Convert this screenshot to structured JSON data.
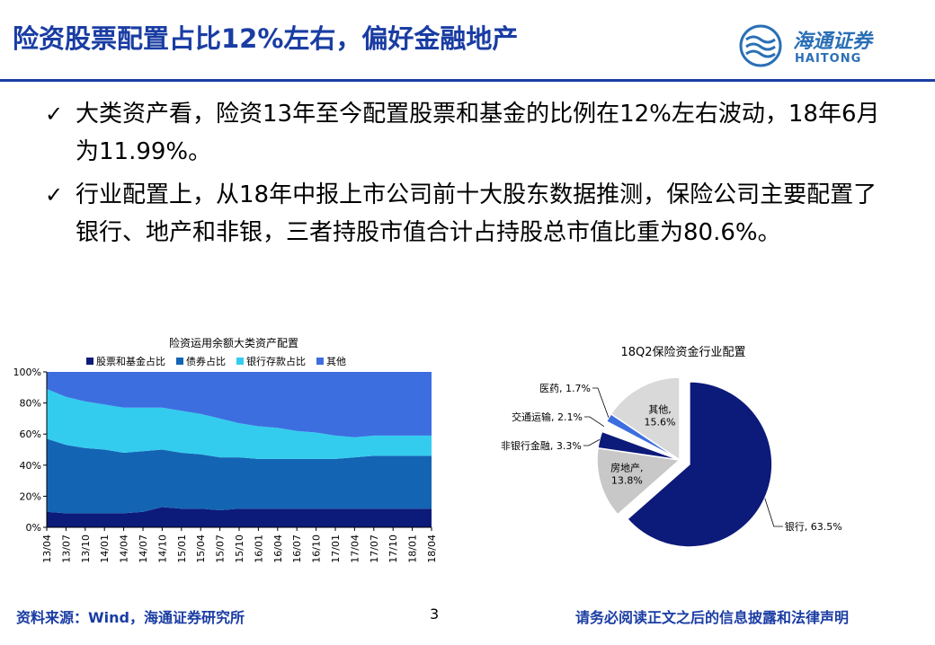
{
  "header": {
    "title": "险资股票配置占比12%左右，偏好金融地产",
    "logo_cn": "海通证券",
    "logo_en": "HAITONG"
  },
  "bullets": [
    "大类资产看，险资13年至今配置股票和基金的比例在12%左右波动，18年6月为11.99%。",
    "行业配置上，从18年中报上市公司前十大股东数据推测，保险公司主要配置了银行、地产和非银，三者持股市值合计占持股总市值比重为80.6%。"
  ],
  "footer": {
    "source": "资料来源：Wind，海通证券研究所",
    "page": "3",
    "disclaimer": "请务必阅读正文之后的信息披露和法律声明"
  },
  "colors": {
    "title": "#1a3da3",
    "stock": "#0c1a7a",
    "bond": "#1464b4",
    "deposit": "#33ccee",
    "other": "#3c6ee0"
  },
  "chart_data": [
    {
      "type": "area",
      "stacked": true,
      "title": "险资运用余额大类资产配置",
      "ylim": [
        0,
        100
      ],
      "y_ticks": [
        "0%",
        "20%",
        "40%",
        "60%",
        "80%",
        "100%"
      ],
      "x_ticks": [
        "13/04",
        "13/07",
        "13/10",
        "14/01",
        "14/04",
        "14/07",
        "14/10",
        "15/01",
        "15/04",
        "15/07",
        "15/10",
        "16/01",
        "16/04",
        "16/07",
        "16/10",
        "17/01",
        "17/04",
        "17/07",
        "17/10",
        "18/01",
        "18/04"
      ],
      "legend_position": "top",
      "series": [
        {
          "name": "股票和基金占比",
          "color": "#0c1a7a",
          "values": [
            10,
            9,
            9,
            9,
            9,
            10,
            13,
            12,
            12,
            11,
            12,
            12,
            12,
            12,
            12,
            12,
            12,
            12,
            12,
            12,
            12
          ]
        },
        {
          "name": "债券占比",
          "color": "#1464b4",
          "values": [
            47,
            44,
            42,
            41,
            39,
            39,
            37,
            36,
            35,
            34,
            33,
            32,
            32,
            32,
            32,
            32,
            33,
            34,
            34,
            34,
            34
          ]
        },
        {
          "name": "银行存款占比",
          "color": "#33ccee",
          "values": [
            32,
            31,
            30,
            29,
            29,
            28,
            27,
            27,
            26,
            25,
            22,
            21,
            20,
            18,
            17,
            15,
            13,
            13,
            13,
            13,
            13
          ]
        },
        {
          "name": "其他",
          "color": "#3c6ee0",
          "values": [
            11,
            16,
            19,
            21,
            23,
            23,
            23,
            25,
            27,
            30,
            33,
            35,
            36,
            38,
            39,
            41,
            42,
            41,
            41,
            41,
            41
          ]
        }
      ]
    },
    {
      "type": "pie",
      "title": "18Q2保险资金行业配置",
      "slices": [
        {
          "name": "银行",
          "value": 63.5,
          "label": "银行, 63.5%",
          "color": "#0c1a7a"
        },
        {
          "name": "房地产",
          "value": 13.8,
          "label_line1": "房地产,",
          "label_line2": "13.8%",
          "color": "#c8c8c8"
        },
        {
          "name": "非银行金融",
          "value": 3.3,
          "label": "非银行金融, 3.3%",
          "color": "#0c1a7a"
        },
        {
          "name": "交通运输",
          "value": 2.1,
          "label": "交通运输, 2.1%",
          "color": "#ffffff"
        },
        {
          "name": "医药",
          "value": 1.7,
          "label": "医药, 1.7%",
          "color": "#3c6ee0"
        },
        {
          "name": "其他",
          "value": 15.6,
          "label_line1": "其他,",
          "label_line2": "15.6%",
          "color": "#d9d9d9"
        }
      ]
    }
  ]
}
